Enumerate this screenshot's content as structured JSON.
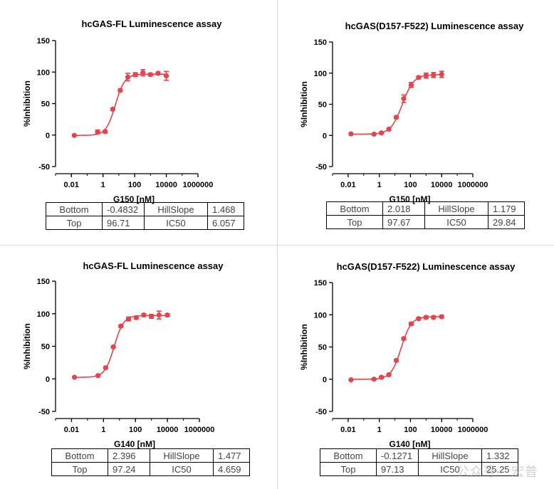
{
  "watermark": "公众号 · 宏普",
  "colors": {
    "series": "#e8424b",
    "axis": "#000000"
  },
  "chart_data": [
    {
      "type": "scatter",
      "title": "hcGAS-FL Luminescence assay",
      "xlabel": "G150 [nM]",
      "ylabel": "%Inhibition",
      "xscale": "log",
      "xlim": [
        0.001,
        1000000
      ],
      "ylim": [
        -50,
        150
      ],
      "xticks": [
        "0.01",
        "1",
        "100",
        "10000",
        "1000000"
      ],
      "yticks": [
        "-50",
        "0",
        "50",
        "100",
        "150"
      ],
      "x": [
        0.0152,
        0.457,
        1.37,
        4.12,
        12.3,
        37,
        111,
        333,
        1000,
        3000,
        10000
      ],
      "y": [
        -0.5,
        5,
        5.5,
        41,
        71,
        92,
        96,
        99,
        96,
        98,
        94
      ],
      "err": [
        0,
        3,
        2,
        1.5,
        2,
        6,
        3,
        5,
        2,
        2,
        7
      ],
      "fit": {
        "bottom": -0.4832,
        "top": 96.71,
        "hillslope": 1.468,
        "ic50": 6.057
      },
      "table": {
        "bottom_label": "Bottom",
        "bottom": "-0.4832",
        "hill_label": "HillSlope",
        "hill": "1.468",
        "top_label": "Top",
        "top": "96.71",
        "ic50_label": "IC50",
        "ic50": "6.057"
      }
    },
    {
      "type": "scatter",
      "title": "hcGAS(D157-F522) Luminescence assay",
      "xlabel": "G150 [nM]",
      "ylabel": "%Inhibition",
      "xscale": "log",
      "xlim": [
        0.001,
        1000000
      ],
      "ylim": [
        -50,
        150
      ],
      "xticks": [
        "0.01",
        "1",
        "100",
        "10000",
        "1000000"
      ],
      "yticks": [
        "-50",
        "0",
        "50",
        "100",
        "150"
      ],
      "x": [
        0.0152,
        0.457,
        1.37,
        4.12,
        12.3,
        37,
        111,
        333,
        1000,
        3000,
        10000
      ],
      "y": [
        2.5,
        2,
        4,
        10,
        29,
        59,
        81,
        93,
        96,
        97,
        98
      ],
      "err": [
        0,
        1,
        1.5,
        2,
        2,
        6,
        4,
        2,
        4,
        4,
        5
      ],
      "fit": {
        "bottom": 2.018,
        "top": 97.67,
        "hillslope": 1.179,
        "ic50": 29.84
      },
      "table": {
        "bottom_label": "Bottom",
        "bottom": "2.018",
        "hill_label": "HillSlope",
        "hill": "1.179",
        "top_label": "Top",
        "top": "97.67",
        "ic50_label": "IC50",
        "ic50": "29.84"
      }
    },
    {
      "type": "scatter",
      "title": "hcGAS-FL Luminescence assay",
      "xlabel": "G140 [nM]",
      "ylabel": "%Inhibition",
      "xscale": "log",
      "xlim": [
        0.001,
        1000000
      ],
      "ylim": [
        -50,
        150
      ],
      "xticks": [
        "0.01",
        "1",
        "100",
        "10000",
        "1000000"
      ],
      "yticks": [
        "-50",
        "0",
        "50",
        "100",
        "150"
      ],
      "x": [
        0.0152,
        0.457,
        1.37,
        4.12,
        12.3,
        37,
        111,
        333,
        1000,
        3000,
        10000
      ],
      "y": [
        2.5,
        5,
        17,
        49,
        81,
        92,
        94,
        98,
        96,
        98,
        98
      ],
      "err": [
        0,
        1,
        1.5,
        1.5,
        2,
        3,
        2,
        2,
        3,
        6,
        2
      ],
      "fit": {
        "bottom": 2.396,
        "top": 97.24,
        "hillslope": 1.477,
        "ic50": 4.659
      },
      "table": {
        "bottom_label": "Bottom",
        "bottom": "2.396",
        "hill_label": "HillSlope",
        "hill": "1.477",
        "top_label": "Top",
        "top": "97.24",
        "ic50_label": "IC50",
        "ic50": "4.659"
      }
    },
    {
      "type": "scatter",
      "title": "hcGAS(D157-F522) Luminescence assay",
      "xlabel": "G140 [nM]",
      "ylabel": "%Inhibition",
      "xscale": "log",
      "xlim": [
        0.001,
        1000000
      ],
      "ylim": [
        -50,
        150
      ],
      "xticks": [
        "0.01",
        "1",
        "100",
        "10000",
        "1000000"
      ],
      "yticks": [
        "-50",
        "0",
        "50",
        "100",
        "150"
      ],
      "x": [
        0.0152,
        0.457,
        1.37,
        4.12,
        12.3,
        37,
        111,
        333,
        1000,
        3000,
        10000
      ],
      "y": [
        -1,
        0,
        3,
        7,
        29,
        63,
        86,
        94,
        96,
        96,
        97
      ],
      "err": [
        0,
        1,
        1.5,
        1.5,
        1.5,
        2,
        2,
        2,
        2,
        2,
        2
      ],
      "fit": {
        "bottom": -0.1271,
        "top": 97.13,
        "hillslope": 1.332,
        "ic50": 25.25
      },
      "table": {
        "bottom_label": "Bottom",
        "bottom": "-0.1271",
        "hill_label": "HillSlope",
        "hill": "1.332",
        "top_label": "Top",
        "top": "97.13",
        "ic50_label": "IC50",
        "ic50": "25.25"
      }
    }
  ]
}
